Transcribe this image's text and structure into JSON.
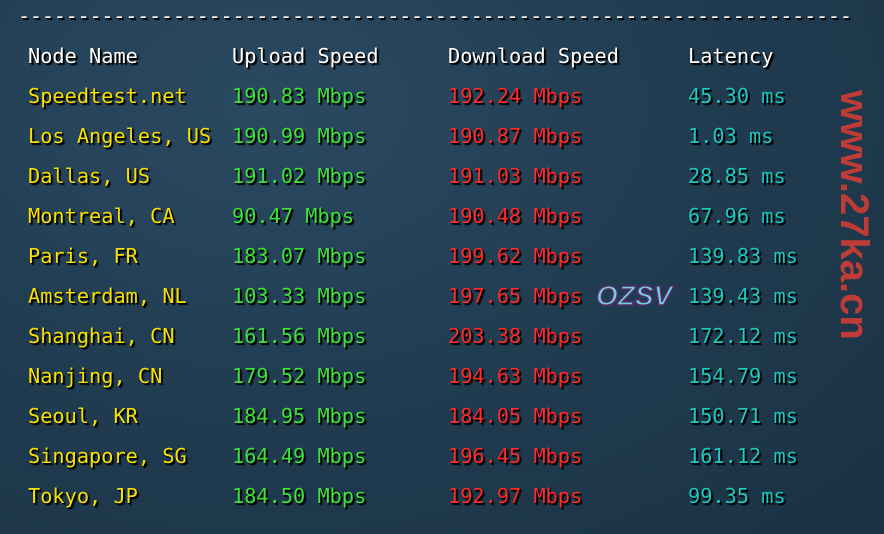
{
  "separator": "----------------------------------------------------------------------",
  "headers": {
    "node": "Node Name",
    "upload": "Upload Speed",
    "download": "Download Speed",
    "latency": "Latency"
  },
  "rows": [
    {
      "node": "Speedtest.net",
      "upload": "190.83 Mbps",
      "download": "192.24 Mbps",
      "latency": "45.30 ms"
    },
    {
      "node": "Los Angeles, US",
      "upload": "190.99 Mbps",
      "download": "190.87 Mbps",
      "latency": "1.03 ms"
    },
    {
      "node": "Dallas, US",
      "upload": "191.02 Mbps",
      "download": "191.03 Mbps",
      "latency": "28.85 ms"
    },
    {
      "node": "Montreal, CA",
      "upload": "90.47 Mbps",
      "download": "190.48 Mbps",
      "latency": "67.96 ms"
    },
    {
      "node": "Paris, FR",
      "upload": "183.07 Mbps",
      "download": "199.62 Mbps",
      "latency": "139.83 ms"
    },
    {
      "node": "Amsterdam, NL",
      "upload": "103.33 Mbps",
      "download": "197.65 Mbps",
      "latency": "139.43 ms"
    },
    {
      "node": "Shanghai, CN",
      "upload": "161.56 Mbps",
      "download": "203.38 Mbps",
      "latency": "172.12 ms"
    },
    {
      "node": "Nanjing, CN",
      "upload": "179.52 Mbps",
      "download": "194.63 Mbps",
      "latency": "154.79 ms"
    },
    {
      "node": "Seoul, KR",
      "upload": "184.95 Mbps",
      "download": "184.05 Mbps",
      "latency": "150.71 ms"
    },
    {
      "node": "Singapore, SG",
      "upload": "164.49 Mbps",
      "download": "196.45 Mbps",
      "latency": "161.12 ms"
    },
    {
      "node": "Tokyo, JP",
      "upload": "184.50 Mbps",
      "download": "192.97 Mbps",
      "latency": "99.35 ms"
    }
  ],
  "watermark": "www.27ka.cn",
  "logo": "OZSV",
  "colors": {
    "node": "#f5e003",
    "upload": "#3ee23a",
    "download": "#ff2a2a",
    "latency": "#1fc8c0",
    "background": "#213d52"
  }
}
